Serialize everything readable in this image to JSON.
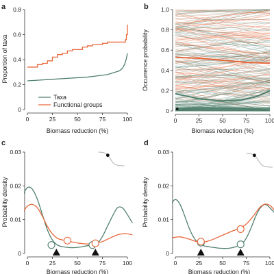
{
  "colors": {
    "taxa": "#4f7f6c",
    "functional": "#e8673a",
    "marker": "#111111",
    "inset_curve": "#b5b5b5",
    "axis": "#333333"
  },
  "chart_data": [
    {
      "panel": "a",
      "type": "line",
      "xlabel": "Biomass reduction (%)",
      "ylabel": "Proportion of taxa",
      "xlim": [
        0,
        100
      ],
      "ylim": [
        0,
        0.8
      ],
      "xticks": [
        0,
        25,
        50,
        75,
        100
      ],
      "yticks": [
        0,
        0.2,
        0.4,
        0.6,
        0.8
      ],
      "ytick_labels": [
        "0",
        "0.2",
        "0.4",
        "0.6",
        "0.8"
      ],
      "legend_position": "bottom-left",
      "series": [
        {
          "name": "Taxa",
          "color_key": "taxa",
          "x": [
            0,
            10,
            20,
            30,
            40,
            50,
            60,
            70,
            80,
            88,
            92,
            95,
            97,
            98,
            99,
            100
          ],
          "y": [
            0.23,
            0.235,
            0.24,
            0.245,
            0.25,
            0.255,
            0.26,
            0.27,
            0.28,
            0.3,
            0.31,
            0.33,
            0.36,
            0.38,
            0.41,
            0.45
          ]
        },
        {
          "name": "Functional groups",
          "color_key": "functional",
          "x": [
            0,
            5,
            10,
            15,
            20,
            25,
            30,
            35,
            40,
            45,
            50,
            55,
            60,
            65,
            70,
            75,
            80,
            85,
            90,
            95,
            98,
            99,
            100
          ],
          "y": [
            0.34,
            0.34,
            0.36,
            0.37,
            0.39,
            0.42,
            0.44,
            0.45,
            0.47,
            0.48,
            0.48,
            0.5,
            0.51,
            0.52,
            0.52,
            0.53,
            0.54,
            0.54,
            0.54,
            0.54,
            0.56,
            0.6,
            0.68
          ]
        }
      ]
    },
    {
      "panel": "b",
      "type": "line",
      "xlabel": "Biomass reduction (%)",
      "ylabel": "Occurrence probability",
      "xlim": [
        0,
        100
      ],
      "ylim": [
        0,
        1
      ],
      "xticks": [
        0,
        25,
        50,
        75,
        100
      ],
      "yticks": [
        0,
        0.2,
        0.4,
        0.6,
        0.8,
        1.0
      ],
      "ytick_labels": [
        "0",
        "0.2",
        "0.4",
        "0.6",
        "0.8",
        "1.0"
      ],
      "background_curves": {
        "functional_count": 90,
        "taxa_count": 160
      },
      "series": [
        {
          "role": "mean-functional",
          "color_key": "functional",
          "x": [
            0,
            25,
            50,
            75,
            100
          ],
          "y": [
            0.53,
            0.52,
            0.5,
            0.48,
            0.47
          ]
        },
        {
          "role": "mean-taxa",
          "color_key": "taxa",
          "x": [
            0,
            10,
            25,
            50,
            70,
            85,
            100
          ],
          "y": [
            0.17,
            0.15,
            0.12,
            0.1,
            0.11,
            0.14,
            0.2
          ]
        }
      ],
      "marker_point": {
        "x": 2,
        "y": 0.02
      }
    },
    {
      "panel": "c",
      "type": "line",
      "xlabel": "Biomass reduction (%)",
      "ylabel": "Probability density",
      "xlim": [
        0,
        100
      ],
      "ylim": [
        0,
        0.03
      ],
      "xticks": [
        0,
        25,
        50,
        75,
        100
      ],
      "yticks": [
        0,
        0.01,
        0.02,
        0.03
      ],
      "ytick_labels": [
        "0",
        "0.01",
        "0.02",
        "0.03"
      ],
      "series": [
        {
          "role": "taxa",
          "color_key": "taxa",
          "x": [
            -5,
            0,
            5,
            10,
            15,
            20,
            25,
            30,
            35,
            40,
            45,
            50,
            55,
            60,
            65,
            70,
            75,
            80,
            85,
            90,
            95,
            100,
            105
          ],
          "y": [
            0.017,
            0.0195,
            0.019,
            0.016,
            0.0115,
            0.007,
            0.004,
            0.0025,
            0.002,
            0.0018,
            0.0017,
            0.0018,
            0.002,
            0.0023,
            0.0026,
            0.003,
            0.005,
            0.008,
            0.011,
            0.0135,
            0.0135,
            0.0115,
            0.009
          ]
        },
        {
          "role": "functional",
          "color_key": "functional",
          "x": [
            -5,
            0,
            5,
            10,
            15,
            20,
            25,
            30,
            35,
            40,
            45,
            50,
            55,
            60,
            65,
            70,
            75,
            80,
            85,
            90,
            95,
            100,
            105
          ],
          "y": [
            0.012,
            0.014,
            0.0145,
            0.0135,
            0.011,
            0.008,
            0.0058,
            0.0045,
            0.004,
            0.0037,
            0.0034,
            0.0031,
            0.0029,
            0.0028,
            0.0029,
            0.0031,
            0.0035,
            0.0042,
            0.0049,
            0.0055,
            0.0058,
            0.0058,
            0.0055
          ]
        }
      ],
      "open_markers": [
        {
          "x": 24,
          "y": 0.0025,
          "color_key": "taxa"
        },
        {
          "x": 40,
          "y": 0.0038,
          "color_key": "functional"
        },
        {
          "x": 65,
          "y": 0.0025,
          "color_key": "taxa"
        },
        {
          "x": 68,
          "y": 0.003,
          "color_key": "functional"
        }
      ],
      "triangles": [
        29,
        68
      ],
      "inset": {
        "dot_fraction": 0.35
      }
    },
    {
      "panel": "d",
      "type": "line",
      "xlabel": "Biomass reduction (%)",
      "ylabel": "Probability density",
      "xlim": [
        0,
        100
      ],
      "ylim": [
        0,
        0.03
      ],
      "xticks": [
        0,
        25,
        50,
        75,
        100
      ],
      "yticks": [
        0,
        0.01,
        0.02,
        0.03
      ],
      "ytick_labels": [
        "0",
        "0.01",
        "0.02",
        "0.03"
      ],
      "series": [
        {
          "role": "taxa",
          "color_key": "taxa",
          "x": [
            -5,
            0,
            5,
            10,
            15,
            20,
            25,
            30,
            35,
            40,
            45,
            50,
            55,
            60,
            65,
            70,
            75,
            80,
            85,
            90,
            95,
            100,
            105
          ],
          "y": [
            0.0145,
            0.016,
            0.0145,
            0.011,
            0.0072,
            0.0045,
            0.003,
            0.0023,
            0.002,
            0.0018,
            0.0016,
            0.0015,
            0.0015,
            0.0017,
            0.0021,
            0.0028,
            0.0045,
            0.0075,
            0.011,
            0.0135,
            0.0145,
            0.0135,
            0.012
          ]
        },
        {
          "role": "functional",
          "color_key": "functional",
          "x": [
            -5,
            0,
            5,
            10,
            15,
            20,
            25,
            30,
            35,
            40,
            45,
            50,
            55,
            60,
            65,
            70,
            75,
            80,
            85,
            90,
            95,
            100,
            105
          ],
          "y": [
            0.0045,
            0.0048,
            0.0049,
            0.0046,
            0.0042,
            0.0037,
            0.0034,
            0.0034,
            0.0037,
            0.0042,
            0.0048,
            0.0054,
            0.006,
            0.0066,
            0.0071,
            0.0077,
            0.0087,
            0.0102,
            0.012,
            0.0138,
            0.0146,
            0.0142,
            0.0128
          ]
        }
      ],
      "open_markers": [
        {
          "x": 27,
          "y": 0.0032,
          "color_key": "taxa"
        },
        {
          "x": 27,
          "y": 0.0035,
          "color_key": "functional"
        },
        {
          "x": 69,
          "y": 0.0027,
          "color_key": "taxa"
        },
        {
          "x": 69,
          "y": 0.0072,
          "color_key": "functional"
        }
      ],
      "triangles": [
        27,
        69
      ],
      "inset": {
        "dot_fraction": 0.3
      }
    }
  ],
  "legend": [
    {
      "label": "Taxa",
      "color_key": "taxa"
    },
    {
      "label": "Functional groups",
      "color_key": "functional"
    }
  ]
}
